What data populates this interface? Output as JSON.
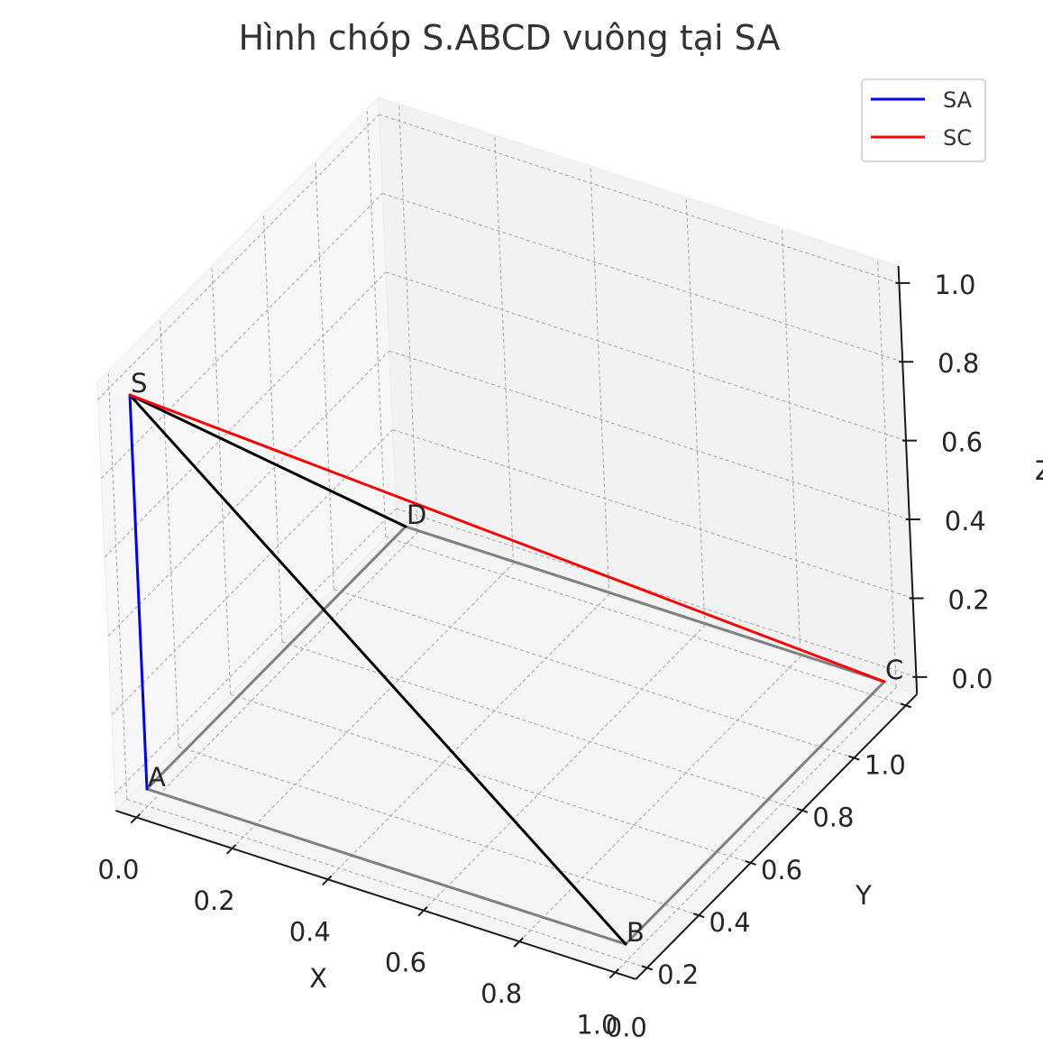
{
  "chart_data": {
    "type": "line",
    "projection": "3d",
    "title": "Hình chóp S.ABCD vuông tại SA",
    "xlabel": "X",
    "ylabel": "Y",
    "zlabel": "Z",
    "xlim": [
      0,
      1
    ],
    "ylim": [
      0,
      1
    ],
    "zlim": [
      0,
      1
    ],
    "x_ticks": [
      "0.0",
      "0.2",
      "0.4",
      "0.6",
      "0.8",
      "1.0"
    ],
    "y_ticks": [
      "0.0",
      "0.2",
      "0.4",
      "0.6",
      "0.8",
      "1.0"
    ],
    "z_ticks": [
      "0.0",
      "0.2",
      "0.4",
      "0.6",
      "0.8",
      "1.0"
    ],
    "grid": true,
    "legend_position": "top-right",
    "points": [
      {
        "name": "A",
        "x": 0,
        "y": 0,
        "z": 0
      },
      {
        "name": "B",
        "x": 1,
        "y": 0,
        "z": 0
      },
      {
        "name": "C",
        "x": 1,
        "y": 1,
        "z": 0
      },
      {
        "name": "D",
        "x": 0,
        "y": 1,
        "z": 0
      },
      {
        "name": "S",
        "x": 0,
        "y": 0,
        "z": 1
      }
    ],
    "base_edges": [
      [
        "A",
        "B"
      ],
      [
        "B",
        "C"
      ],
      [
        "C",
        "D"
      ],
      [
        "D",
        "A"
      ]
    ],
    "lateral_edges": [
      [
        "S",
        "B"
      ],
      [
        "S",
        "D"
      ]
    ],
    "series": [
      {
        "name": "SA",
        "color": "#0000ff",
        "from": "S",
        "to": "A"
      },
      {
        "name": "SC",
        "color": "#ff0000",
        "from": "S",
        "to": "C"
      }
    ],
    "colors": {
      "base": "#808080",
      "lateral": "#000000"
    }
  }
}
